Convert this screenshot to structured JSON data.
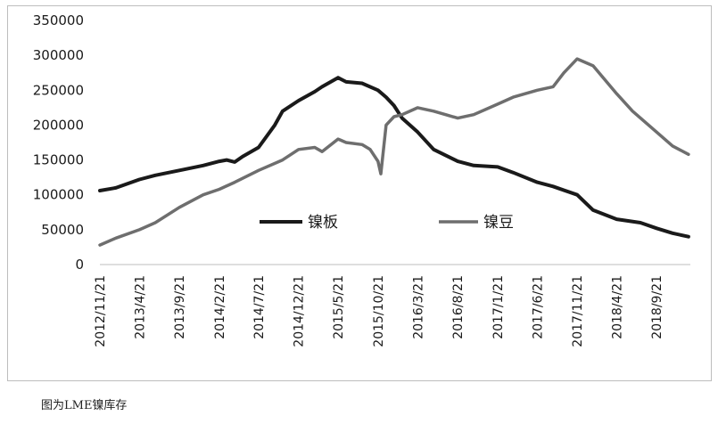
{
  "caption": "图为LME镍库存",
  "chart_data": {
    "type": "line",
    "title": "",
    "xlabel": "",
    "ylabel": "",
    "ylim": [
      0,
      350000
    ],
    "yticks": [
      0,
      50000,
      100000,
      150000,
      200000,
      250000,
      300000,
      350000
    ],
    "ytick_labels": [
      "0",
      "50000",
      "100000",
      "150000",
      "200000",
      "250000",
      "300000",
      "350000"
    ],
    "xticks": [
      "2012/11/21",
      "2013/4/21",
      "2013/9/21",
      "2014/2/21",
      "2014/7/21",
      "2014/12/21",
      "2015/5/21",
      "2015/10/21",
      "2016/3/21",
      "2016/8/21",
      "2017/1/21",
      "2017/6/21",
      "2017/11/21",
      "2018/4/21",
      "2018/9/21"
    ],
    "grid": false,
    "legend_position": "center",
    "colors": {
      "nickel_plate": "#1a1a1a",
      "nickel_bean": "#6e6e6e"
    },
    "series": [
      {
        "name": "镍板",
        "x": [
          "2012/11/21",
          "2013/1/21",
          "2013/4/21",
          "2013/6/21",
          "2013/9/21",
          "2013/12/21",
          "2014/2/21",
          "2014/3/21",
          "2014/4/21",
          "2014/5/21",
          "2014/7/21",
          "2014/9/21",
          "2014/10/21",
          "2014/12/21",
          "2015/2/21",
          "2015/3/21",
          "2015/5/21",
          "2015/6/21",
          "2015/8/21",
          "2015/10/21",
          "2015/11/21",
          "2015/12/21",
          "2016/1/21",
          "2016/3/21",
          "2016/5/21",
          "2016/8/21",
          "2016/10/21",
          "2017/1/21",
          "2017/3/21",
          "2017/6/21",
          "2017/8/21",
          "2017/11/21",
          "2018/1/21",
          "2018/4/21",
          "2018/7/21",
          "2018/9/21",
          "2018/11/21",
          "2019/1/21"
        ],
        "values": [
          106000,
          110000,
          122000,
          128000,
          135000,
          142000,
          148000,
          150000,
          147000,
          155000,
          168000,
          200000,
          220000,
          235000,
          248000,
          255000,
          268000,
          262000,
          260000,
          250000,
          240000,
          228000,
          210000,
          190000,
          165000,
          148000,
          142000,
          140000,
          132000,
          118000,
          112000,
          100000,
          78000,
          65000,
          60000,
          52000,
          45000,
          40000
        ]
      },
      {
        "name": "镍豆",
        "x": [
          "2012/11/21",
          "2013/1/21",
          "2013/4/21",
          "2013/6/21",
          "2013/9/21",
          "2013/12/21",
          "2014/2/21",
          "2014/4/21",
          "2014/7/21",
          "2014/10/21",
          "2014/12/21",
          "2015/2/21",
          "2015/3/21",
          "2015/5/21",
          "2015/6/21",
          "2015/8/21",
          "2015/9/21",
          "2015/10/21",
          "2015/11/1",
          "2015/11/21",
          "2015/12/21",
          "2016/1/21",
          "2016/3/21",
          "2016/5/21",
          "2016/8/21",
          "2016/10/21",
          "2017/1/21",
          "2017/3/21",
          "2017/6/21",
          "2017/8/21",
          "2017/10/1",
          "2017/11/21",
          "2018/1/21",
          "2018/4/21",
          "2018/6/21",
          "2018/9/21",
          "2018/11/21",
          "2019/1/21"
        ],
        "values": [
          28000,
          38000,
          50000,
          60000,
          82000,
          100000,
          108000,
          118000,
          135000,
          150000,
          165000,
          168000,
          162000,
          180000,
          175000,
          172000,
          165000,
          148000,
          130000,
          200000,
          212000,
          215000,
          225000,
          220000,
          210000,
          215000,
          230000,
          240000,
          250000,
          255000,
          275000,
          295000,
          285000,
          245000,
          220000,
          190000,
          170000,
          158000
        ]
      }
    ]
  }
}
